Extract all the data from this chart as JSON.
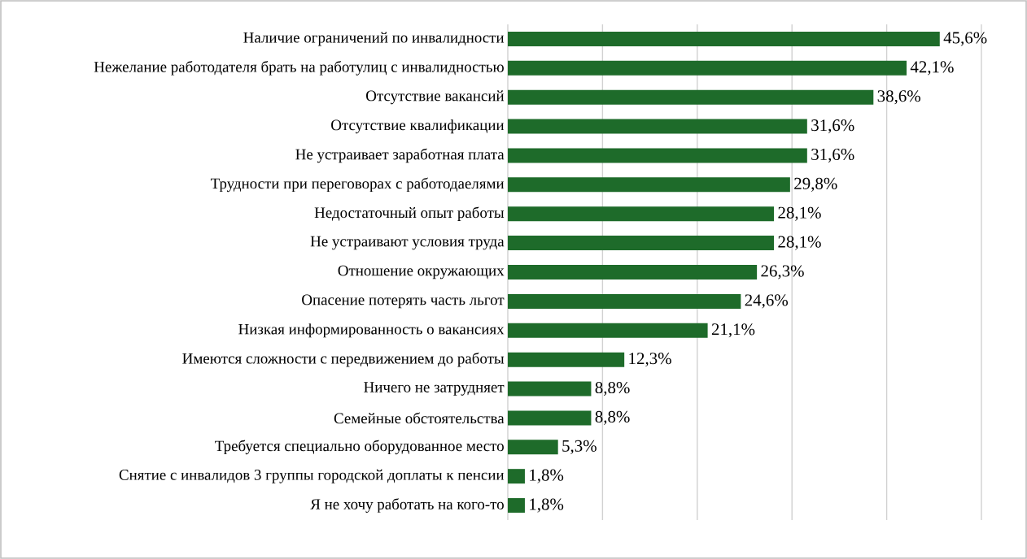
{
  "chart_data": {
    "type": "bar",
    "orientation": "horizontal",
    "categories": [
      "Наличие ограничений по инвалидности",
      "Нежелание работодателя брать на работулиц с инвалидностью",
      "Отсутствие вакансий",
      "Отсутствие квалификации",
      "Не устраивает заработная плата",
      "Трудности при переговорах с работодаелями",
      "Недостаточный опыт работы",
      "Не устраивают условия труда",
      "Отношение окружающих",
      "Опасение потерять часть льгот",
      "Низкая информированность о вакансиях",
      "Имеются сложности с передвижением до работы",
      "Ничего не затрудняет",
      "Семейные обстоятельства",
      "Требуется специально оборудованное место",
      "Снятие с инвалидов 3 группы городской доплаты к пенсии",
      "Я не хочу работать на кого-то"
    ],
    "values": [
      45.6,
      42.1,
      38.6,
      31.6,
      31.6,
      29.8,
      28.1,
      28.1,
      26.3,
      24.6,
      21.1,
      12.3,
      8.8,
      8.8,
      5.3,
      1.8,
      1.8
    ],
    "value_labels": [
      "45,6%",
      "42,1%",
      "38,6%",
      "31,6%",
      "31,6%",
      "29,8%",
      "28,1%",
      "28,1%",
      "26,3%",
      "24,6%",
      "21,1%",
      "12,3%",
      "8,8%",
      "8,8%",
      "5,3%",
      "1,8%",
      "1,8%"
    ],
    "color": "#1e6b2a",
    "xlim": [
      0,
      50
    ],
    "xticks": [
      {
        "value": 0,
        "label": null
      },
      {
        "value": 10,
        "label": null
      },
      {
        "value": 20,
        "label": null
      },
      {
        "value": 30,
        "label": null
      },
      {
        "value": 40,
        "label": null
      },
      {
        "value": 50,
        "label": null
      }
    ],
    "grid": "x",
    "tick_labels": "y"
  }
}
